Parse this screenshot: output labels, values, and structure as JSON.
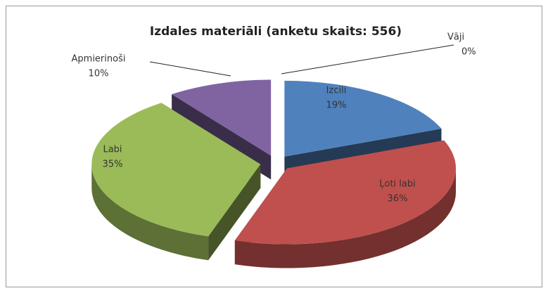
{
  "chart_data": {
    "type": "pie3d",
    "title": "Izdales materiāli (anketu skaits: 556)",
    "categories": [
      "Izcili",
      "Ļoti labi",
      "Labi",
      "Apmierinoši",
      "Vāji"
    ],
    "values": [
      19,
      36,
      35,
      10,
      0
    ],
    "value_labels": [
      "19%",
      "36%",
      "35%",
      "10%",
      "0%"
    ],
    "colors": [
      "#4f81bd",
      "#c0504d",
      "#9bbb59",
      "#8064a2",
      "#4bacc6"
    ]
  }
}
